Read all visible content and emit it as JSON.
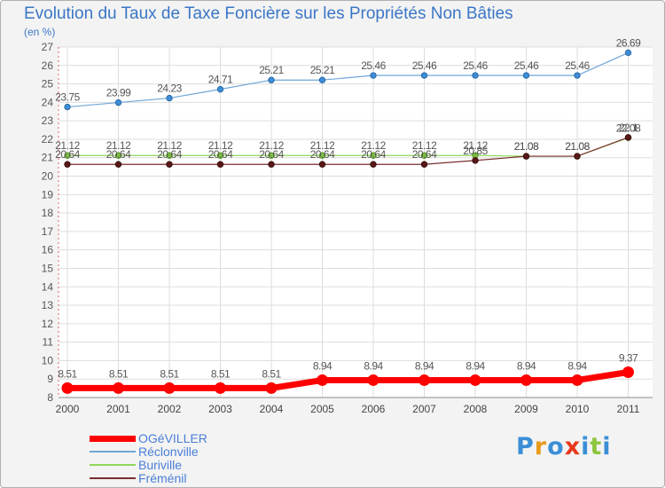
{
  "title": "Evolution du Taux de Taxe Foncière sur les Propriétés Non Bâties",
  "unit": "(en %)",
  "brand": {
    "text": "Proxiti",
    "letters": [
      "P",
      "r",
      "o",
      "x",
      "i",
      "t",
      "i"
    ],
    "colors": [
      "#3a8fd6",
      "#e89a1c",
      "#3a8fd6",
      "#e8381c",
      "#3a8fd6",
      "#8dc63f",
      "#3a8fd6"
    ]
  },
  "chart_data": {
    "type": "line",
    "title": "Evolution du Taux de Taxe Foncière sur les Propriétés Non Bâties",
    "ylabel": "(en %)",
    "xlabel": "",
    "x": [
      "2000",
      "2001",
      "2002",
      "2003",
      "2004",
      "2005",
      "2006",
      "2007",
      "2008",
      "2009",
      "2010",
      "2011"
    ],
    "ylim": [
      8,
      27
    ],
    "yticks": [
      8,
      9,
      10,
      11,
      12,
      13,
      14,
      15,
      16,
      17,
      18,
      19,
      20,
      21,
      22,
      23,
      24,
      25,
      26,
      27
    ],
    "grid": true,
    "series": [
      {
        "name": "OGéVILLER",
        "color": "#ff0000",
        "values": [
          8.51,
          8.51,
          8.51,
          8.51,
          8.51,
          8.94,
          8.94,
          8.94,
          8.94,
          8.94,
          8.94,
          9.37
        ],
        "labels": [
          "8.51",
          "8.51",
          "8.51",
          "8.51",
          "8.51",
          "8.94",
          "8.94",
          "8.94",
          "8.94",
          "8.94",
          "8.94",
          "9.37"
        ]
      },
      {
        "name": "Réclonville",
        "color": "#6fa6d8",
        "values": [
          23.75,
          23.99,
          24.23,
          24.71,
          25.21,
          25.21,
          25.46,
          25.46,
          25.46,
          25.46,
          25.46,
          26.69
        ],
        "labels": [
          "23.75",
          "23.99",
          "24.23",
          "24.71",
          "25.21",
          "25.21",
          "25.46",
          "25.46",
          "25.46",
          "25.46",
          "25.46",
          "26.69"
        ]
      },
      {
        "name": "Buriville",
        "color": "#8fd65a",
        "values": [
          21.12,
          21.12,
          21.12,
          21.12,
          21.12,
          21.12,
          21.12,
          21.12,
          21.12,
          21.08,
          21.08,
          22.08
        ],
        "labels": [
          "21.12",
          "21.12",
          "21.12",
          "21.12",
          "21.12",
          "21.12",
          "21.12",
          "21.12",
          "21.12",
          "21.08",
          "21.08",
          "22.08"
        ]
      },
      {
        "name": "Fréménil",
        "color": "#7a2e2e",
        "values": [
          20.64,
          20.64,
          20.64,
          20.64,
          20.64,
          20.64,
          20.64,
          20.64,
          20.85,
          21.08,
          21.08,
          22.1
        ],
        "labels": [
          "20.64",
          "20.64",
          "20.64",
          "20.64",
          "20.64",
          "20.64",
          "20.64",
          "20.64",
          "20.85",
          "21.08",
          "21.08",
          "22.1"
        ]
      }
    ]
  }
}
